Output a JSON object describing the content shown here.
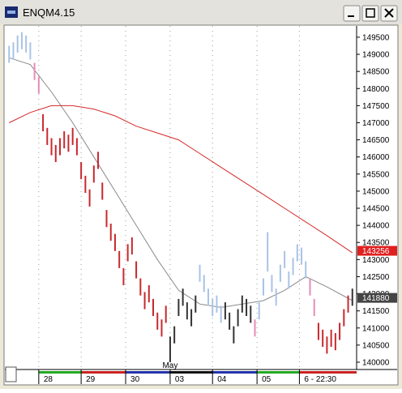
{
  "chart_data": {
    "type": "ohlc",
    "title": "ENQM4.15",
    "xlim": [
      -1,
      82
    ],
    "ylim": [
      139810,
      149830
    ],
    "yticks": [
      140000,
      140500,
      141000,
      141500,
      142000,
      142500,
      143000,
      143500,
      144000,
      144500,
      145000,
      145500,
      146000,
      146500,
      147000,
      147500,
      148000,
      148500,
      149000,
      149500
    ],
    "xticks": [
      {
        "value": 7,
        "label": "28"
      },
      {
        "value": 17,
        "label": "29"
      },
      {
        "value": 27.5,
        "label": "30"
      },
      {
        "value": 38,
        "label": "03"
      },
      {
        "value": 48,
        "label": "04"
      },
      {
        "value": 58.5,
        "label": "05"
      },
      {
        "value": 68.5,
        "label": "6 - 22:30"
      }
    ],
    "annotations": [
      {
        "text": "May",
        "x": 38
      }
    ],
    "grid": true,
    "series": [
      {
        "color": "#a9c3e6",
        "x": [
          0,
          1,
          2,
          3,
          4,
          5
        ],
        "high": [
          149250,
          149350,
          149550,
          149650,
          149550,
          149350
        ],
        "low": [
          148750,
          148850,
          149050,
          149150,
          149050,
          148850
        ]
      },
      {
        "color": "#e78bb8",
        "x": [
          6,
          7
        ],
        "high": [
          148750,
          148350
        ],
        "low": [
          148250,
          147850
        ]
      },
      {
        "color": "#c8282d",
        "x": [
          8,
          9,
          10,
          11,
          12,
          13,
          14,
          15,
          16,
          17,
          18,
          19,
          20,
          21,
          22,
          23,
          24,
          25,
          26,
          27,
          28,
          29,
          30,
          31,
          32,
          33,
          34,
          35,
          36,
          37
        ],
        "high": [
          147250,
          146850,
          146550,
          146350,
          146550,
          146750,
          146650,
          146850,
          146550,
          145850,
          145450,
          145050,
          145750,
          146150,
          145250,
          144450,
          144050,
          143750,
          143250,
          142750,
          143450,
          143650,
          142950,
          142450,
          142050,
          142250,
          141850,
          141450,
          141250,
          141650
        ],
        "low": [
          146750,
          146350,
          146050,
          145850,
          146050,
          146250,
          146150,
          146350,
          146050,
          145350,
          144950,
          144550,
          145250,
          145650,
          144750,
          143950,
          143550,
          143250,
          142750,
          142250,
          142950,
          143150,
          142450,
          141950,
          141550,
          141750,
          141350,
          140950,
          140750,
          141150
        ]
      },
      {
        "color": "#333333",
        "x": [
          38,
          39,
          40,
          41,
          42,
          43,
          44
        ],
        "high": [
          140750,
          141050,
          141850,
          142150,
          141750,
          141550,
          141950
        ],
        "low": [
          140000,
          140550,
          141350,
          141650,
          141250,
          141050,
          141450
        ]
      },
      {
        "color": "#a9c3e6",
        "x": [
          45,
          46,
          47,
          48,
          49,
          50
        ],
        "high": [
          142850,
          142550,
          142150,
          141850,
          141950,
          141650
        ],
        "low": [
          142350,
          142050,
          141650,
          141350,
          141450,
          141150
        ]
      },
      {
        "color": "#333333",
        "x": [
          51,
          52,
          53,
          54,
          55,
          56,
          57
        ],
        "high": [
          141750,
          141450,
          141050,
          141550,
          141950,
          141850,
          141650
        ],
        "low": [
          141250,
          140950,
          140550,
          141050,
          141450,
          141350,
          141150
        ]
      },
      {
        "color": "#e78bb8",
        "x": [
          58
        ],
        "high": [
          141250
        ],
        "low": [
          140750
        ]
      },
      {
        "color": "#a9c3e6",
        "x": [
          59,
          60,
          61,
          62,
          63,
          64,
          65,
          66,
          67,
          68,
          69,
          70
        ],
        "high": [
          141750,
          142450,
          143800,
          142550,
          142150,
          142850,
          143250,
          142650,
          143050,
          143450,
          143350,
          142950
        ],
        "low": [
          141250,
          141950,
          142650,
          142050,
          141650,
          142350,
          142750,
          142150,
          142550,
          142950,
          142850,
          142450
        ]
      },
      {
        "color": "#e78bb8",
        "x": [
          71,
          72
        ],
        "high": [
          142450,
          141850
        ],
        "low": [
          141950,
          141350
        ]
      },
      {
        "color": "#c8282d",
        "x": [
          73,
          74,
          75,
          76,
          77,
          78,
          79,
          80
        ],
        "high": [
          141150,
          140950,
          140750,
          140950,
          140850,
          141150,
          141550,
          141950
        ],
        "low": [
          140650,
          140450,
          140250,
          140450,
          140350,
          140650,
          141050,
          141450
        ]
      },
      {
        "color": "#333333",
        "x": [
          81
        ],
        "high": [
          142150
        ],
        "low": [
          141650
        ]
      }
    ],
    "lines": [
      {
        "color": "#8a8a8a",
        "x": [
          0,
          5,
          10,
          15,
          20,
          25,
          30,
          35,
          40,
          45,
          50,
          55,
          60,
          65,
          70,
          75,
          81
        ],
        "values": [
          148900,
          148700,
          147900,
          147000,
          146000,
          145000,
          144000,
          143000,
          142100,
          141700,
          141600,
          141700,
          141800,
          142100,
          142500,
          142200,
          141800
        ]
      },
      {
        "color": "#d42a2a",
        "x": [
          0,
          5,
          10,
          15,
          20,
          25,
          30,
          35,
          40,
          45,
          50,
          55,
          60,
          65,
          70,
          75,
          81
        ],
        "values": [
          147000,
          147300,
          147500,
          147500,
          147400,
          147200,
          146900,
          146700,
          146500,
          146100,
          145700,
          145300,
          144900,
          144500,
          144100,
          143700,
          143200
        ]
      }
    ],
    "price_labels": [
      {
        "value": 143256,
        "color": "#e02020"
      },
      {
        "value": 141880,
        "color": "#444444"
      }
    ]
  }
}
